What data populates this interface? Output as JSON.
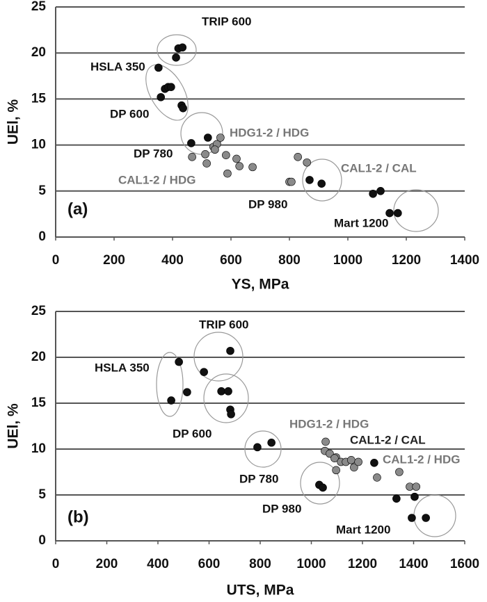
{
  "chart_data": [
    {
      "type": "scatter",
      "panel_label": "(a)",
      "x_label": "YS, MPa",
      "y_label": "UEl, %",
      "xlim": [
        0,
        1400
      ],
      "xticks": [
        0,
        200,
        400,
        600,
        800,
        1000,
        1200,
        1400
      ],
      "ylim": [
        0,
        25
      ],
      "yticks": [
        0,
        5,
        10,
        15,
        20,
        25
      ],
      "grid": true,
      "series": [
        {
          "color": "#111111",
          "x": [
            352,
            412,
            420,
            434,
            360,
            374,
            385,
            395,
            431,
            436,
            464,
            521,
            869,
            910,
            1086,
            1112,
            1143,
            1171
          ],
          "values": [
            18.4,
            19.5,
            20.5,
            20.6,
            15.2,
            16.1,
            16.3,
            16.3,
            14.3,
            14.0,
            10.2,
            10.8,
            6.2,
            5.8,
            4.7,
            5.0,
            2.6,
            2.6
          ]
        },
        {
          "color": "#8a8a8a",
          "x": [
            467,
            512,
            517,
            540,
            552,
            545,
            564,
            583,
            588,
            619,
            629,
            674,
            800,
            807,
            829,
            860
          ],
          "values": [
            8.7,
            9.0,
            8.0,
            9.8,
            10.1,
            9.5,
            10.8,
            8.9,
            6.9,
            8.5,
            7.7,
            7.6,
            6.0,
            6.0,
            8.7,
            8.1
          ]
        }
      ],
      "annotations": [
        {
          "text": "TRIP 600",
          "color": "#111111"
        },
        {
          "text": "HSLA 350",
          "color": "#111111"
        },
        {
          "text": "DP 600",
          "color": "#111111"
        },
        {
          "text": "HDG1-2 / HDG",
          "color": "#777777"
        },
        {
          "text": "DP 780",
          "color": "#111111"
        },
        {
          "text": "CAL1-2 / HDG",
          "color": "#777777"
        },
        {
          "text": "CAL1-2 / CAL",
          "color": "#777777"
        },
        {
          "text": "DP 980",
          "color": "#111111"
        },
        {
          "text": "Mart 1200",
          "color": "#111111"
        }
      ]
    },
    {
      "type": "scatter",
      "panel_label": "(b)",
      "x_label": "UTS, MPa",
      "y_label": "UEl, %",
      "xlim": [
        0,
        1600
      ],
      "xticks": [
        0,
        200,
        400,
        600,
        800,
        1000,
        1200,
        1400,
        1600
      ],
      "ylim": [
        0,
        25
      ],
      "yticks": [
        0,
        5,
        10,
        15,
        20,
        25
      ],
      "grid": true,
      "series": [
        {
          "color": "#111111",
          "x": [
            482,
            452,
            514,
            580,
            683,
            648,
            675,
            683,
            686,
            789,
            844,
            1031,
            1045,
            1246,
            1333,
            1404,
            1393,
            1448
          ],
          "values": [
            19.5,
            15.3,
            16.2,
            18.4,
            20.7,
            16.3,
            16.3,
            14.3,
            13.8,
            10.2,
            10.7,
            6.1,
            5.8,
            8.5,
            4.6,
            4.8,
            2.5,
            2.5
          ]
        },
        {
          "color": "#8a8a8a",
          "x": [
            1056,
            1053,
            1072,
            1097,
            1091,
            1116,
            1135,
            1156,
            1097,
            1167,
            1184,
            1257,
            1344,
            1385,
            1410
          ],
          "values": [
            10.8,
            9.8,
            9.5,
            9.1,
            9.0,
            8.6,
            8.6,
            8.8,
            7.7,
            8.0,
            8.6,
            6.9,
            7.5,
            5.9,
            5.9
          ]
        }
      ],
      "annotations": [
        {
          "text": "TRIP 600",
          "color": "#111111"
        },
        {
          "text": "HSLA 350",
          "color": "#111111"
        },
        {
          "text": "DP 600",
          "color": "#111111"
        },
        {
          "text": "HDG1-2 / HDG",
          "color": "#777777"
        },
        {
          "text": "CAL1-2 / CAL",
          "color": "#222222"
        },
        {
          "text": "CAL1-2 / HDG",
          "color": "#777777"
        },
        {
          "text": "DP 780",
          "color": "#111111"
        },
        {
          "text": "DP 980",
          "color": "#111111"
        },
        {
          "text": "Mart 1200",
          "color": "#111111"
        }
      ]
    }
  ]
}
